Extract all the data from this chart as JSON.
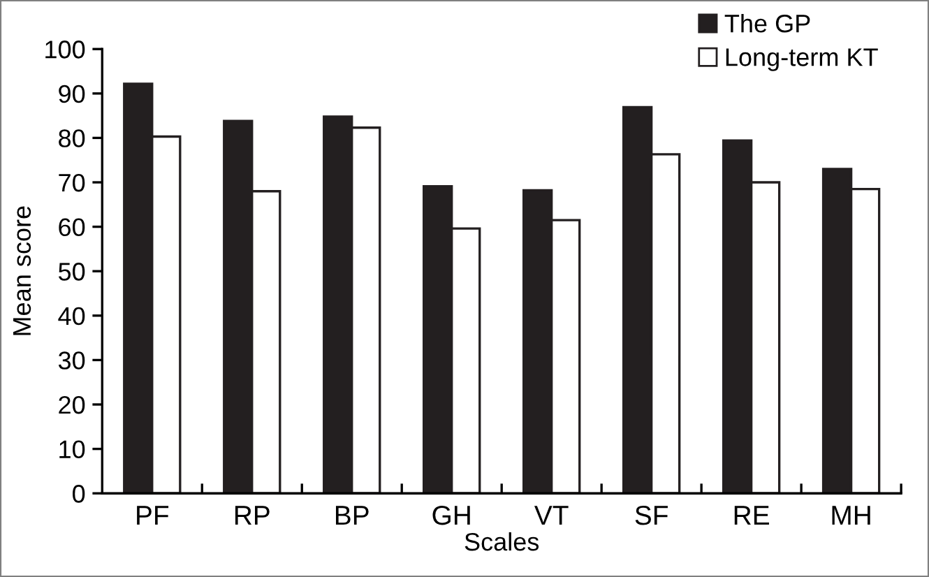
{
  "chart_data": {
    "type": "bar",
    "xlabel": "Scales",
    "ylabel": "Mean score",
    "categories": [
      "PF",
      "RP",
      "BP",
      "GH",
      "VT",
      "SF",
      "RE",
      "MH"
    ],
    "series": [
      {
        "name": "The GP",
        "color": "#231f20",
        "values": [
          92.2,
          83.8,
          84.8,
          69.1,
          68.2,
          86.9,
          79.4,
          73.0
        ]
      },
      {
        "name": "Long-term KT",
        "color": "#ffffff",
        "values": [
          80.3,
          68.0,
          82.3,
          59.6,
          61.5,
          76.3,
          70.0,
          68.5
        ]
      }
    ],
    "ylim": [
      0,
      100
    ],
    "yticks": [
      0,
      10,
      20,
      30,
      40,
      50,
      60,
      70,
      80,
      90,
      100
    ],
    "grid": false,
    "legend": "top right"
  }
}
